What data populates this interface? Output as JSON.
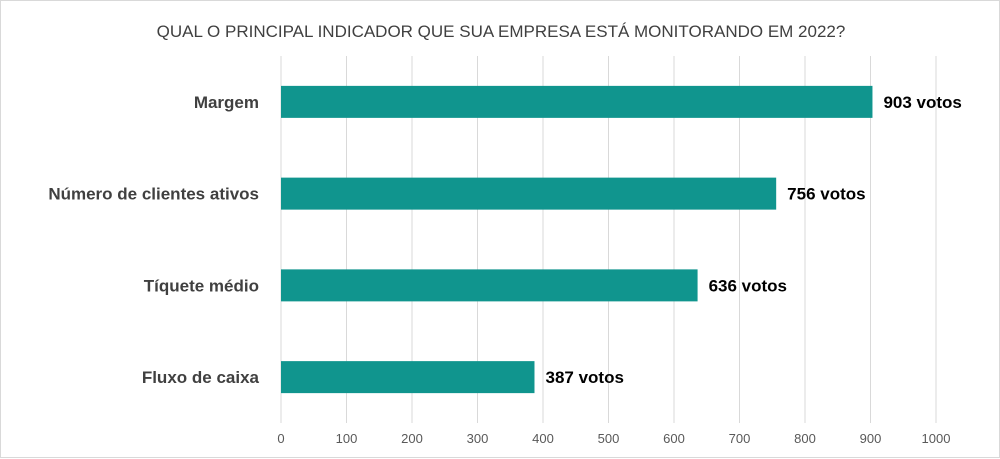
{
  "chart_data": {
    "type": "bar",
    "orientation": "horizontal",
    "title": "QUAL O PRINCIPAL INDICADOR QUE SUA EMPRESA ESTÁ MONITORANDO EM 2022?",
    "categories": [
      "Margem",
      "Número de clientes ativos",
      "Tíquete médio",
      "Fluxo de caixa"
    ],
    "values": [
      903,
      756,
      636,
      387
    ],
    "data_labels": [
      "903 votos",
      "756 votos",
      "636 votos",
      "387 votos"
    ],
    "xlim": [
      0,
      1000
    ],
    "x_ticks": [
      "0",
      "100",
      "200",
      "300",
      "400",
      "500",
      "600",
      "700",
      "800",
      "900",
      "1000"
    ],
    "grid": true,
    "bar_color": "#10958e"
  }
}
